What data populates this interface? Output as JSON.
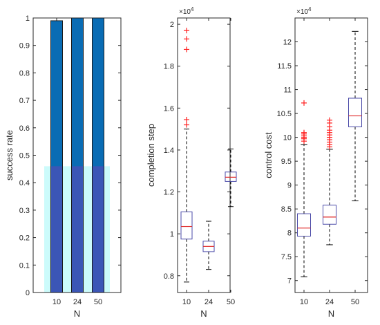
{
  "chart_data": [
    {
      "type": "bar",
      "xlabel": "N",
      "ylabel": "success rate",
      "categories": [
        "10",
        "24",
        "50"
      ],
      "values": [
        0.99,
        1.0,
        1.0
      ],
      "ylim": [
        0,
        1
      ],
      "yticks": [
        "0",
        "0.1",
        "0.2",
        "0.3",
        "0.4",
        "0.5",
        "0.6",
        "0.7",
        "0.8",
        "0.9",
        "1"
      ],
      "colors": {
        "bar": "#0a6cb4",
        "bar_overlay": "#3b56b6",
        "background_band": "#ccfbfb"
      }
    },
    {
      "type": "box",
      "xlabel": "N",
      "ylabel": "completion step",
      "exponent_label": "×10^4",
      "exponent_base": "×10",
      "exponent_power": "4",
      "categories": [
        "10",
        "24",
        "50"
      ],
      "ylim": [
        0.72,
        2.03
      ],
      "yticks": [
        "0.8",
        "1",
        "1.2",
        "1.4",
        "1.6",
        "1.8",
        "2"
      ],
      "series": [
        {
          "category": "10",
          "whisker_low": 0.77,
          "q1": 0.975,
          "median": 1.035,
          "q3": 1.105,
          "whisker_high": 1.5,
          "outliers": [
            1.52,
            1.545,
            1.88,
            1.93,
            1.97
          ]
        },
        {
          "category": "24",
          "whisker_low": 0.83,
          "q1": 0.915,
          "median": 0.94,
          "q3": 0.965,
          "whisker_high": 1.06,
          "outliers": []
        },
        {
          "category": "50",
          "whisker_low": 1.13,
          "q1": 1.25,
          "median": 1.27,
          "q3": 1.295,
          "whisker_high": 1.405,
          "outliers": []
        }
      ],
      "colors": {
        "box": "#4a4aa8",
        "median": "#e03030",
        "whisker": "#000000",
        "outlier": "#ff2020"
      }
    },
    {
      "type": "box",
      "xlabel": "N",
      "ylabel": "control cost",
      "exponent_label": "×10^4",
      "exponent_base": "×10",
      "exponent_power": "4",
      "categories": [
        "10",
        "24",
        "50"
      ],
      "ylim": [
        6.75,
        12.5
      ],
      "yticks": [
        "7",
        "7.5",
        "8",
        "8.5",
        "9",
        "9.5",
        "10",
        "10.5",
        "11",
        "11.5",
        "12"
      ],
      "series": [
        {
          "category": "10",
          "whisker_low": 7.08,
          "q1": 7.93,
          "median": 8.1,
          "q3": 8.4,
          "whisker_high": 9.85,
          "outliers": [
            9.92,
            9.97,
            10.0,
            10.03,
            10.07,
            10.1,
            10.72
          ]
        },
        {
          "category": "24",
          "whisker_low": 7.75,
          "q1": 8.18,
          "median": 8.33,
          "q3": 8.58,
          "whisker_high": 9.75,
          "outliers": [
            9.8,
            9.85,
            9.9,
            9.95,
            10.0,
            10.05,
            10.1,
            10.15,
            10.22,
            10.3,
            10.36
          ]
        },
        {
          "category": "50",
          "whisker_low": 8.67,
          "q1": 10.22,
          "median": 10.45,
          "q3": 10.82,
          "whisker_high": 12.22,
          "outliers": []
        }
      ],
      "colors": {
        "box": "#4a4aa8",
        "median": "#e03030",
        "whisker": "#000000",
        "outlier": "#ff2020"
      }
    }
  ]
}
